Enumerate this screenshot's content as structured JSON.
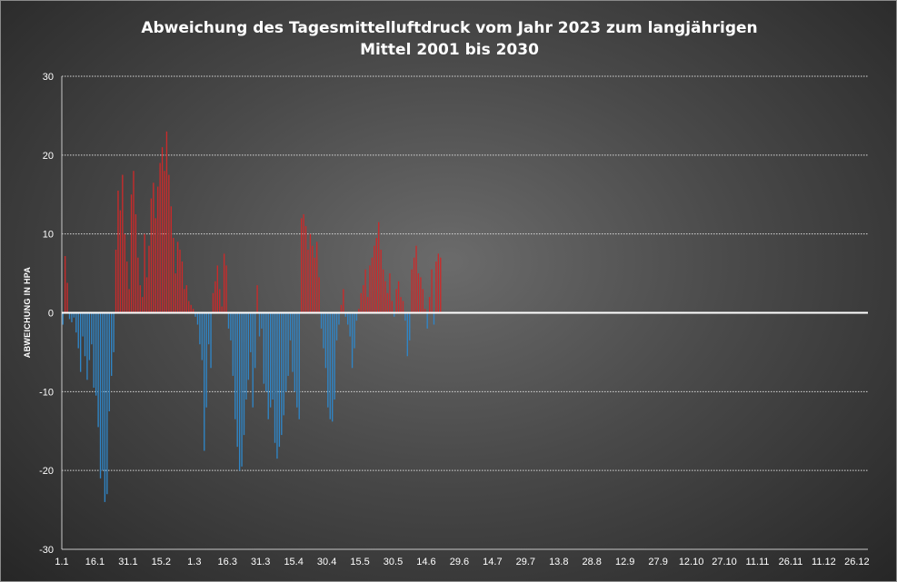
{
  "chart_data": {
    "type": "bar",
    "title_lines": [
      "Abweichung  des Tagesmittelluftdruck  vom Jahr 2023 zum langjährigen",
      "Mittel  2001 bis 2030"
    ],
    "xlabel": "",
    "ylabel": "ABWEICHUNG IN HPA",
    "ylim": [
      -30,
      30
    ],
    "yticks": [
      30,
      20,
      10,
      0,
      -10,
      -20,
      -30
    ],
    "x_days": 365,
    "xtick_labels": [
      "1.1",
      "16.1",
      "31.1",
      "15.2",
      "1.3",
      "16.3",
      "31.3",
      "15.4",
      "30.4",
      "15.5",
      "30.5",
      "14.6",
      "29.6",
      "14.7",
      "29.7",
      "13.8",
      "28.8",
      "12.9",
      "27.9",
      "12.10",
      "27.10",
      "11.11",
      "26.11",
      "11.12",
      "26.12"
    ],
    "grid": true,
    "series": [
      {
        "positive_color": "#cc2a2a",
        "negative_color": "#2f86c8",
        "values": [
          -1.5,
          7.2,
          3.8,
          -0.8,
          -1.2,
          -0.6,
          -2.5,
          -4.5,
          -7.5,
          -3.0,
          -5.5,
          -8.5,
          -6.0,
          -4.0,
          -9.5,
          -10.5,
          -14.5,
          -21.0,
          -20.0,
          -24.0,
          -23.0,
          -12.5,
          -8.0,
          -5.0,
          8.0,
          15.5,
          13.0,
          17.5,
          10.0,
          6.5,
          3.0,
          15.0,
          18.0,
          12.5,
          7.0,
          3.5,
          2.0,
          10.0,
          4.5,
          8.5,
          14.5,
          16.5,
          12.0,
          16.0,
          19.0,
          21.0,
          18.0,
          23.0,
          17.5,
          13.5,
          9.5,
          5.0,
          9.0,
          8.0,
          6.5,
          3.0,
          3.5,
          1.5,
          1.0,
          0.5,
          -0.5,
          -1.5,
          -4.0,
          -6.0,
          -17.5,
          -12.0,
          -4.0,
          -7.0,
          2.5,
          4.0,
          6.0,
          3.0,
          0.8,
          7.5,
          6.0,
          -2.0,
          -3.5,
          -8.0,
          -13.5,
          -17.0,
          -20.0,
          -19.5,
          -15.5,
          -11.0,
          -8.5,
          -5.0,
          -12.0,
          -7.0,
          3.5,
          -3.0,
          -2.0,
          -9.0,
          -10.0,
          -13.5,
          -12.0,
          -11.0,
          -16.5,
          -18.5,
          -17.0,
          -15.5,
          -13.0,
          -10.0,
          -8.0,
          -3.5,
          -7.5,
          -10.0,
          -12.0,
          -13.5,
          12.0,
          12.5,
          11.0,
          8.0,
          10.0,
          8.5,
          7.0,
          9.0,
          4.5,
          -2.0,
          -4.5,
          -7.0,
          -12.0,
          -13.5,
          -13.8,
          -11.0,
          -3.5,
          -1.5,
          1.0,
          3.0,
          -0.5,
          -1.5,
          -3.0,
          -7.0,
          -4.5,
          -1.0,
          0.5,
          2.5,
          3.5,
          5.5,
          2.0,
          6.0,
          7.0,
          8.5,
          9.5,
          11.5,
          8.0,
          5.5,
          4.0,
          2.5,
          5.0,
          1.5,
          -0.5,
          3.0,
          4.0,
          2.0,
          1.5,
          -1.0,
          -5.5,
          -3.5,
          5.5,
          7.0,
          8.5,
          5.0,
          4.5,
          3.0,
          0.5,
          -2.0,
          2.0,
          5.5,
          -1.5,
          6.5,
          7.5,
          7.0
        ]
      }
    ]
  }
}
